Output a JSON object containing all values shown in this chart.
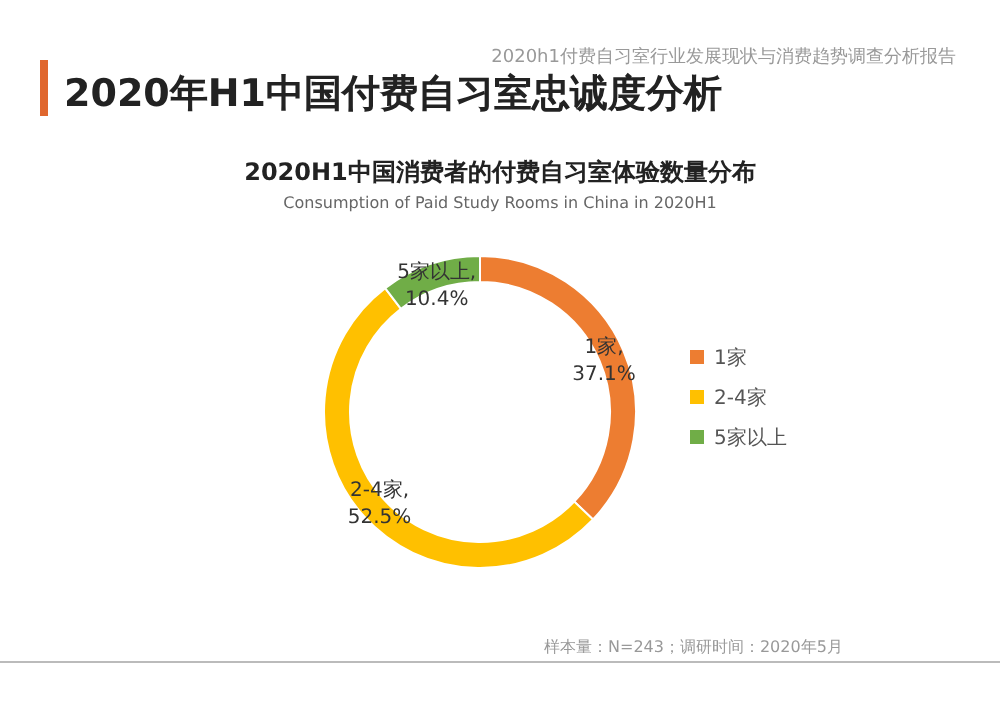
{
  "chart_data": {
    "type": "donut",
    "title": "2020H1中国消费者的付费自习室体验数量分布",
    "subtitle": "Consumption of Paid Study Rooms in China in 2020H1",
    "annotations": [
      "2020年H1中国付费自习室忠诚度分析",
      "2020h1付费自习室行业发展现状与消费趋势调查分析报告",
      "样本量：N=243；调研时间：2020年5月"
    ],
    "categories": [
      "1家",
      "2-4家",
      "5家以上"
    ],
    "values": [
      37.1,
      52.5,
      10.4
    ],
    "colors": [
      "#ed7d31",
      "#ffc000",
      "#70ad47"
    ],
    "value_labels": [
      "1家,\n37.1%",
      "2-4家,\n52.5%",
      "5家以上,\n10.4%"
    ],
    "legend": "right"
  }
}
